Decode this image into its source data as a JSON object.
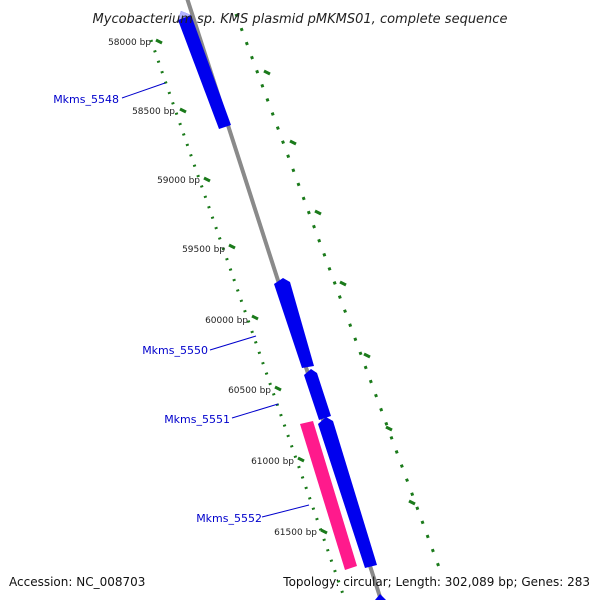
{
  "title": "Mycobacterium sp. KMS plasmid pMKMS01, complete sequence",
  "footer": {
    "accession": "Accession: NC_008703",
    "summary": "Topology: circular; Length: 302,089 bp; Genes: 283"
  },
  "colors": {
    "backbone": "#8a8a8a",
    "forward_gene": "#0000ee",
    "reverse_gene": "#ff1a8c",
    "tick": "#1a7a1a",
    "label": "#0000cc",
    "background": "#ffffff"
  },
  "scale_ticks": [
    {
      "label": "58000 bp"
    },
    {
      "label": "58500 bp"
    },
    {
      "label": "59000 bp"
    },
    {
      "label": "59500 bp"
    },
    {
      "label": "60000 bp"
    },
    {
      "label": "60500 bp"
    },
    {
      "label": "61000 bp"
    },
    {
      "label": "61500 bp"
    }
  ],
  "genes": [
    {
      "name": "Mkms_5548",
      "strand": "forward",
      "color": "#0000ee"
    },
    {
      "name": "Mkms_5550",
      "strand": "forward",
      "color": "#0000ee"
    },
    {
      "name": "Mkms_5551",
      "strand": "forward",
      "color": "#0000ee"
    },
    {
      "name": "Mkms_5552",
      "strand": "reverse",
      "color": "#ff1a8c"
    }
  ]
}
